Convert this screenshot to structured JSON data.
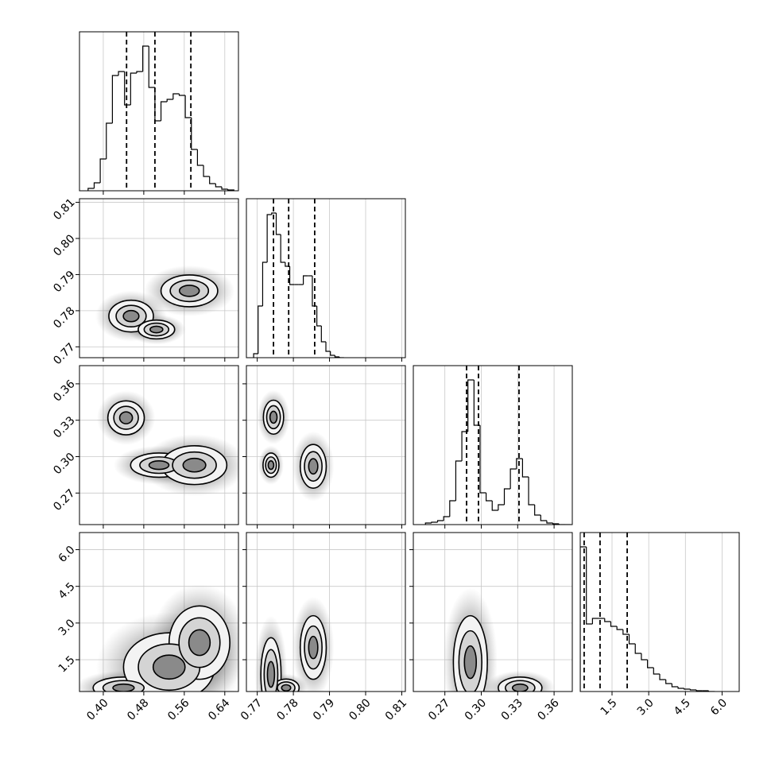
{
  "chart_data": {
    "type": "corner",
    "params": [
      {
        "lim": [
          0.353,
          0.667
        ],
        "ticks": [
          {
            "value": 0.4,
            "label": "0.40"
          },
          0.48,
          0.56,
          0.64
        ],
        "hist": {
          "bins": [
            0.37,
            0.382,
            0.394,
            0.406,
            0.418,
            0.43,
            0.442,
            0.454,
            0.466,
            0.478,
            0.49,
            0.502,
            0.514,
            0.526,
            0.538,
            0.55,
            0.562,
            0.574,
            0.586,
            0.598,
            0.61,
            0.622,
            0.634,
            0.646,
            0.658
          ],
          "counts": [
            3,
            10,
            40,
            85,
            145,
            150,
            108,
            148,
            150,
            182,
            130,
            88,
            112,
            115,
            122,
            120,
            92,
            52,
            32,
            18,
            9,
            5,
            2,
            1
          ],
          "ylim": [
            0,
            200
          ]
        },
        "quantiles": [
          0.446,
          0.502,
          0.573
        ]
      },
      {
        "lim": [
          0.767,
          0.811
        ],
        "ticks": [
          0.77,
          0.78,
          0.79,
          {
            "value": 0.8,
            "label": "0.80"
          },
          0.81
        ],
        "hist": {
          "bins": [
            0.769,
            0.77025,
            0.7715,
            0.77275,
            0.774,
            0.77525,
            0.7765,
            0.77775,
            0.779,
            0.78025,
            0.7815,
            0.78275,
            0.784,
            0.78525,
            0.7865,
            0.78775,
            0.789,
            0.79025,
            0.7915,
            0.79275,
            0.794
          ],
          "counts": [
            5,
            65,
            120,
            180,
            182,
            155,
            120,
            115,
            92,
            92,
            92,
            103,
            103,
            65,
            40,
            20,
            8,
            3,
            1,
            0
          ],
          "ylim": [
            0,
            200
          ]
        },
        "quantiles": [
          0.7745,
          0.7787,
          0.7859
        ]
      },
      {
        "lim": [
          0.244,
          0.375
        ],
        "ticks": [
          0.27,
          {
            "value": 0.3,
            "label": "0.30"
          },
          0.33,
          0.36
        ],
        "hist": {
          "bins": [
            0.254,
            0.259,
            0.264,
            0.269,
            0.274,
            0.279,
            0.284,
            0.289,
            0.294,
            0.299,
            0.304,
            0.309,
            0.314,
            0.319,
            0.324,
            0.329,
            0.334,
            0.339,
            0.344,
            0.349,
            0.354,
            0.359,
            0.364,
            0.369,
            0.374
          ],
          "counts": [
            2,
            3,
            5,
            10,
            30,
            80,
            117,
            182,
            125,
            40,
            30,
            18,
            25,
            45,
            70,
            83,
            60,
            25,
            12,
            5,
            2,
            1,
            0,
            0
          ],
          "ylim": [
            0,
            200
          ]
        },
        "quantiles": [
          0.2879,
          0.2977,
          0.3311
        ]
      },
      {
        "lim": [
          0.2,
          6.7
        ],
        "ticks": [
          1.5,
          {
            "value": 3,
            "label": "3.0"
          },
          4.5,
          {
            "value": 6,
            "label": "6.0"
          }
        ],
        "hist": {
          "bins": [
            0.2,
            0.45,
            0.7,
            0.95,
            1.2,
            1.45,
            1.7,
            1.95,
            2.2,
            2.45,
            2.7,
            2.95,
            3.2,
            3.45,
            3.7,
            3.95,
            4.2,
            4.45,
            4.7,
            4.95,
            5.2,
            5.45,
            5.7
          ],
          "counts": [
            182,
            85,
            92,
            92,
            88,
            82,
            78,
            72,
            60,
            48,
            40,
            30,
            22,
            15,
            10,
            6,
            4,
            3,
            2,
            1,
            1,
            0
          ],
          "ylim": [
            0,
            200
          ]
        },
        "quantiles": [
          0.36,
          1.01,
          2.12
        ]
      }
    ],
    "pairs": [
      {
        "blobs": [
          {
            "x": 0.455,
            "y": 0.7785,
            "sx": 0.022,
            "sy": 0.0022
          },
          {
            "x": 0.505,
            "y": 0.7748,
            "sx": 0.018,
            "sy": 0.0013
          },
          {
            "x": 0.57,
            "y": 0.7855,
            "sx": 0.028,
            "sy": 0.0022
          }
        ]
      },
      {
        "blobs": [
          {
            "x": 0.445,
            "y": 0.332,
            "sx": 0.018,
            "sy": 0.007
          },
          {
            "x": 0.51,
            "y": 0.293,
            "sx": 0.028,
            "sy": 0.005
          },
          {
            "x": 0.58,
            "y": 0.293,
            "sx": 0.032,
            "sy": 0.008
          }
        ]
      },
      {
        "blobs": [
          {
            "x": 0.7745,
            "y": 0.3325,
            "sx": 0.0014,
            "sy": 0.007
          },
          {
            "x": 0.7738,
            "y": 0.293,
            "sx": 0.0011,
            "sy": 0.005
          },
          {
            "x": 0.7855,
            "y": 0.292,
            "sx": 0.0018,
            "sy": 0.009
          }
        ]
      },
      {
        "blobs": [
          {
            "x": 0.44,
            "y": 0.35,
            "sx": 0.03,
            "sy": 0.22
          },
          {
            "x": 0.53,
            "y": 1.2,
            "sx": 0.045,
            "sy": 0.7
          },
          {
            "x": 0.59,
            "y": 2.2,
            "sx": 0.03,
            "sy": 0.75
          }
        ]
      },
      {
        "blobs": [
          {
            "x": 0.7738,
            "y": 0.9,
            "sx": 0.0014,
            "sy": 0.75
          },
          {
            "x": 0.7855,
            "y": 2.0,
            "sx": 0.0018,
            "sy": 0.65
          },
          {
            "x": 0.778,
            "y": 0.35,
            "sx": 0.0018,
            "sy": 0.18
          }
        ]
      },
      {
        "blobs": [
          {
            "x": 0.291,
            "y": 1.4,
            "sx": 0.007,
            "sy": 0.95
          },
          {
            "x": 0.332,
            "y": 0.35,
            "sx": 0.009,
            "sy": 0.22
          }
        ]
      }
    ],
    "grid": true
  }
}
